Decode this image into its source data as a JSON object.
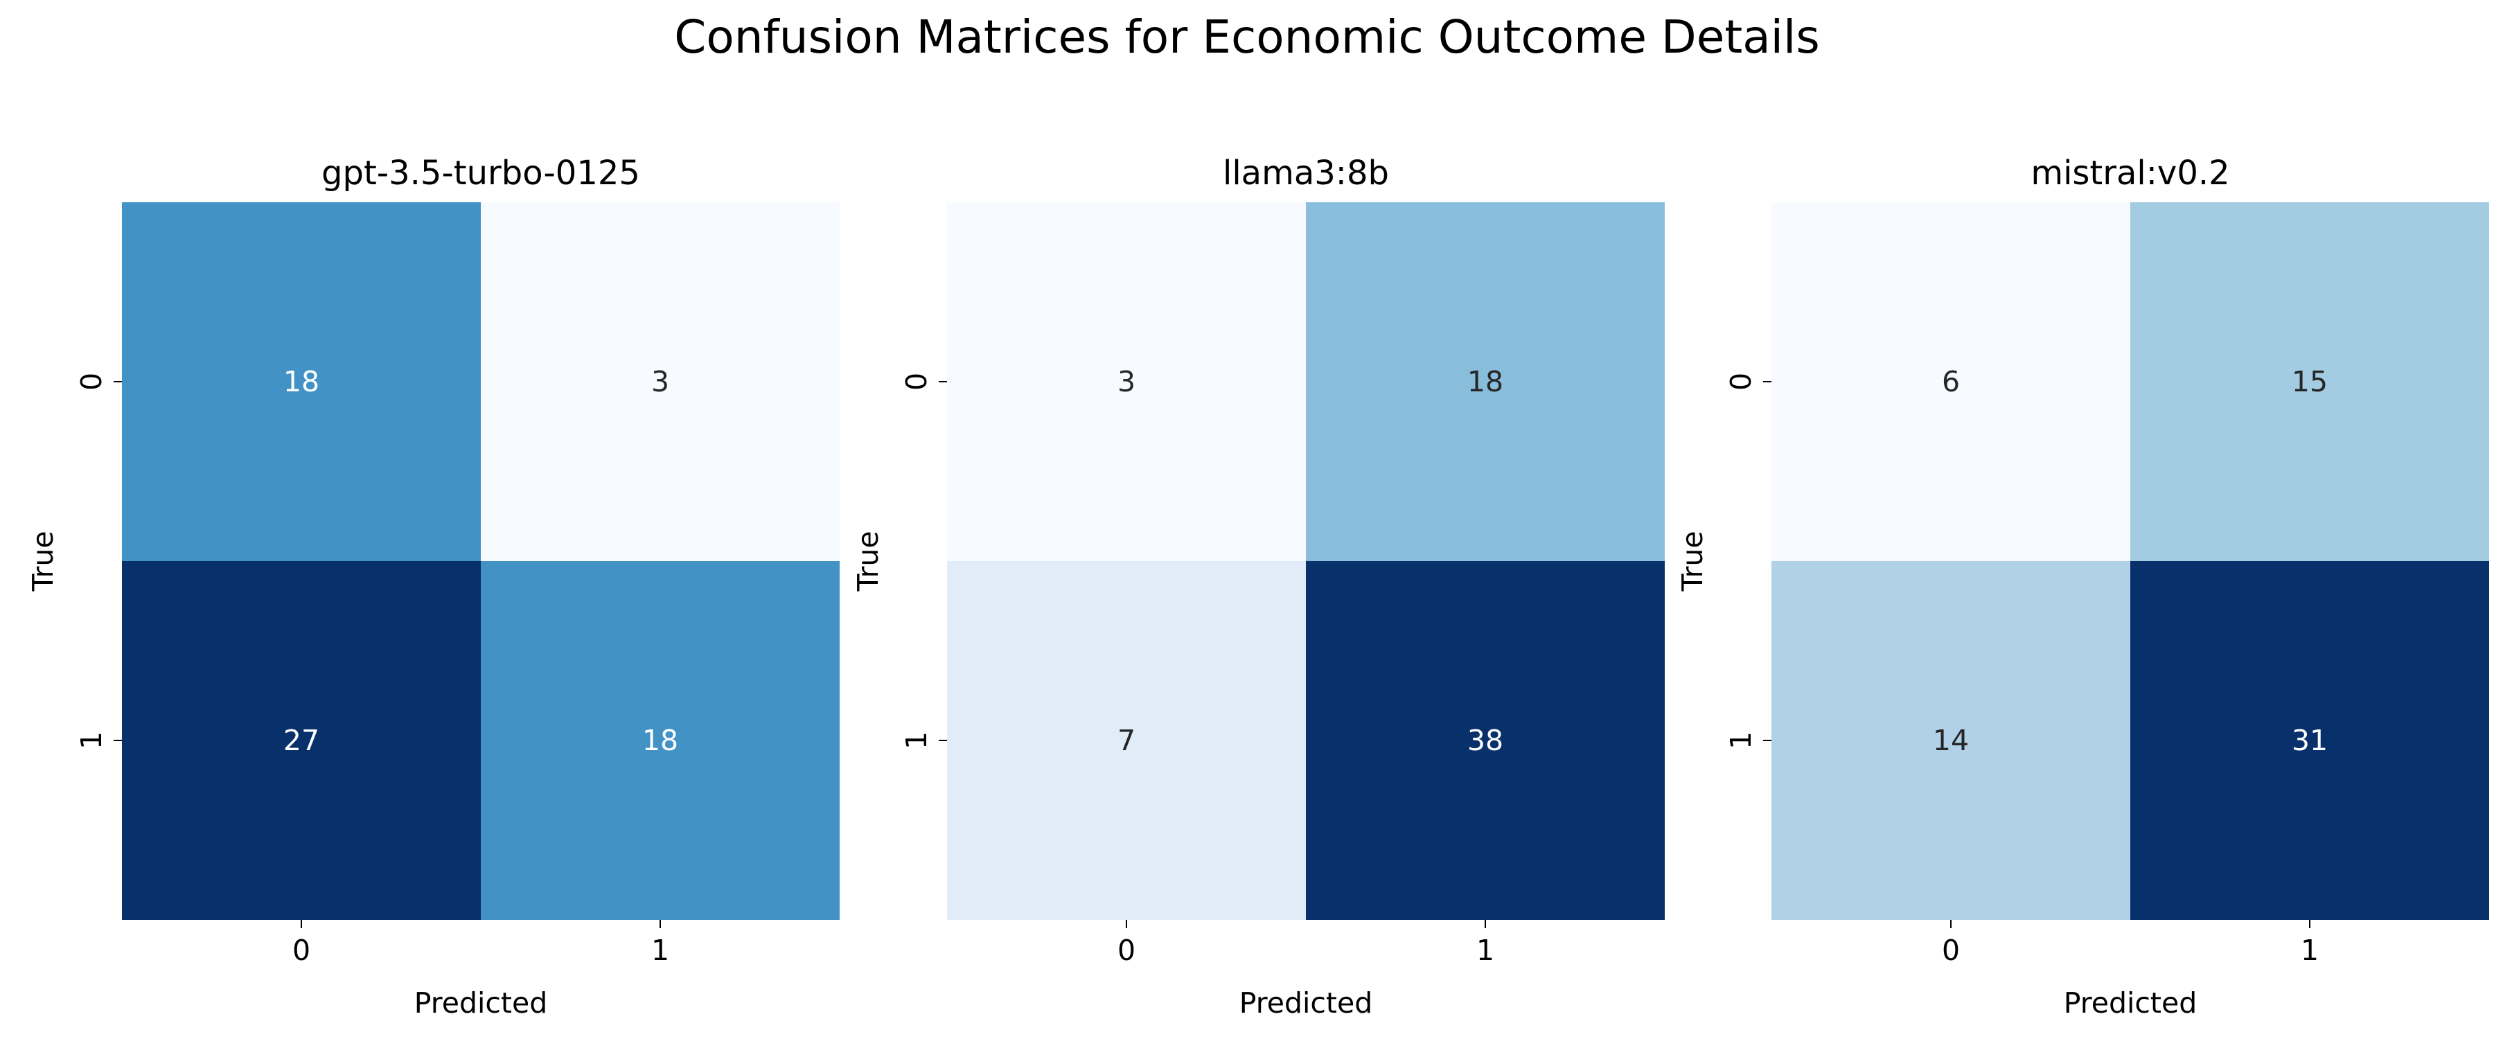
{
  "title": "Confusion Matrices for Economic Outcome Details",
  "chart_data": [
    {
      "type": "heatmap",
      "title": "gpt-3.5-turbo-0125",
      "xlabel": "Predicted",
      "ylabel": "True",
      "x_ticks": [
        "0",
        "1"
      ],
      "y_ticks": [
        "0",
        "1"
      ],
      "colormap": "Blues",
      "colorbar": false,
      "matrix": [
        [
          18,
          3
        ],
        [
          27,
          18
        ]
      ]
    },
    {
      "type": "heatmap",
      "title": "llama3:8b",
      "xlabel": "Predicted",
      "ylabel": "True",
      "x_ticks": [
        "0",
        "1"
      ],
      "y_ticks": [
        "0",
        "1"
      ],
      "colormap": "Blues",
      "colorbar": false,
      "matrix": [
        [
          3,
          18
        ],
        [
          7,
          38
        ]
      ]
    },
    {
      "type": "heatmap",
      "title": "mistral:v0.2",
      "xlabel": "Predicted",
      "ylabel": "True",
      "x_ticks": [
        "0",
        "1"
      ],
      "y_ticks": [
        "0",
        "1"
      ],
      "colormap": "Blues",
      "colorbar": false,
      "matrix": [
        [
          6,
          15
        ],
        [
          14,
          31
        ]
      ]
    }
  ]
}
